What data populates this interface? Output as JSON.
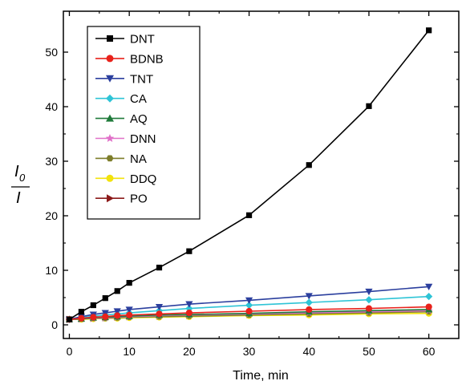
{
  "chart_data": {
    "type": "line",
    "xlabel": "Time, min",
    "ylabel_main": "I",
    "ylabel_sub": "0",
    "ylabel_den": "I",
    "xlim": [
      -1,
      65
    ],
    "ylim": [
      -2.5,
      57.5
    ],
    "xticks": [
      0,
      10,
      20,
      30,
      40,
      50,
      60
    ],
    "yticks": [
      0,
      10,
      20,
      30,
      40,
      50
    ],
    "grid": false,
    "legend_position": "top-left",
    "series": [
      {
        "name": "DNT",
        "color": "#000000",
        "marker": "square",
        "x": [
          0,
          2,
          4,
          6,
          8,
          10,
          15,
          20,
          30,
          40,
          50,
          60
        ],
        "y": [
          1.0,
          2.4,
          3.6,
          4.9,
          6.2,
          7.7,
          10.5,
          13.5,
          20.1,
          29.3,
          40.1,
          54.0
        ]
      },
      {
        "name": "BDNB",
        "color": "#e8221b",
        "marker": "circle",
        "x": [
          0,
          2,
          4,
          6,
          8,
          10,
          15,
          20,
          30,
          40,
          50,
          60
        ],
        "y": [
          1.0,
          1.2,
          1.4,
          1.5,
          1.7,
          1.8,
          2.0,
          2.2,
          2.5,
          2.8,
          3.0,
          3.3
        ]
      },
      {
        "name": "TNT",
        "color": "#2b3f9e",
        "marker": "triangle-down",
        "x": [
          0,
          2,
          4,
          6,
          8,
          10,
          15,
          20,
          30,
          40,
          50,
          60
        ],
        "y": [
          1.0,
          1.5,
          1.9,
          2.2,
          2.5,
          2.8,
          3.3,
          3.8,
          4.5,
          5.3,
          6.1,
          7.0
        ]
      },
      {
        "name": "CA",
        "color": "#2ec4d6",
        "marker": "diamond",
        "x": [
          0,
          2,
          4,
          6,
          8,
          10,
          15,
          20,
          30,
          40,
          50,
          60
        ],
        "y": [
          1.0,
          1.3,
          1.6,
          1.8,
          2.0,
          2.2,
          2.6,
          3.0,
          3.6,
          4.1,
          4.6,
          5.2
        ]
      },
      {
        "name": "AQ",
        "color": "#1f7a3a",
        "marker": "triangle-up",
        "x": [
          0,
          2,
          4,
          6,
          8,
          10,
          15,
          20,
          30,
          40,
          50,
          60
        ],
        "y": [
          1.0,
          1.1,
          1.3,
          1.4,
          1.5,
          1.6,
          1.8,
          1.9,
          2.1,
          2.4,
          2.6,
          2.8
        ]
      },
      {
        "name": "DNN",
        "color": "#e070c8",
        "marker": "star",
        "x": [
          0,
          2,
          4,
          6,
          8,
          10,
          15,
          20,
          30,
          40,
          50,
          60
        ],
        "y": [
          1.0,
          1.1,
          1.2,
          1.3,
          1.4,
          1.5,
          1.7,
          1.8,
          2.0,
          2.2,
          2.4,
          2.6
        ]
      },
      {
        "name": "NA",
        "color": "#7d7d2a",
        "marker": "hexagon",
        "x": [
          0,
          2,
          4,
          6,
          8,
          10,
          15,
          20,
          30,
          40,
          50,
          60
        ],
        "y": [
          1.0,
          1.1,
          1.2,
          1.2,
          1.3,
          1.4,
          1.5,
          1.6,
          1.8,
          2.0,
          2.2,
          2.4
        ]
      },
      {
        "name": "DDQ",
        "color": "#f2e20c",
        "marker": "circle",
        "x": [
          0,
          2,
          4,
          6,
          8,
          10,
          15,
          20,
          30,
          40,
          50,
          60
        ],
        "y": [
          1.0,
          1.0,
          1.1,
          1.2,
          1.2,
          1.3,
          1.4,
          1.5,
          1.7,
          1.8,
          2.0,
          2.1
        ]
      },
      {
        "name": "PO",
        "color": "#8c1a1a",
        "marker": "triangle-right",
        "x": [
          0,
          2,
          4,
          6,
          8,
          10,
          15,
          20,
          30,
          40,
          50,
          60
        ],
        "y": [
          1.0,
          1.1,
          1.2,
          1.3,
          1.4,
          1.5,
          1.6,
          1.7,
          1.9,
          2.1,
          2.3,
          2.5
        ]
      }
    ]
  }
}
